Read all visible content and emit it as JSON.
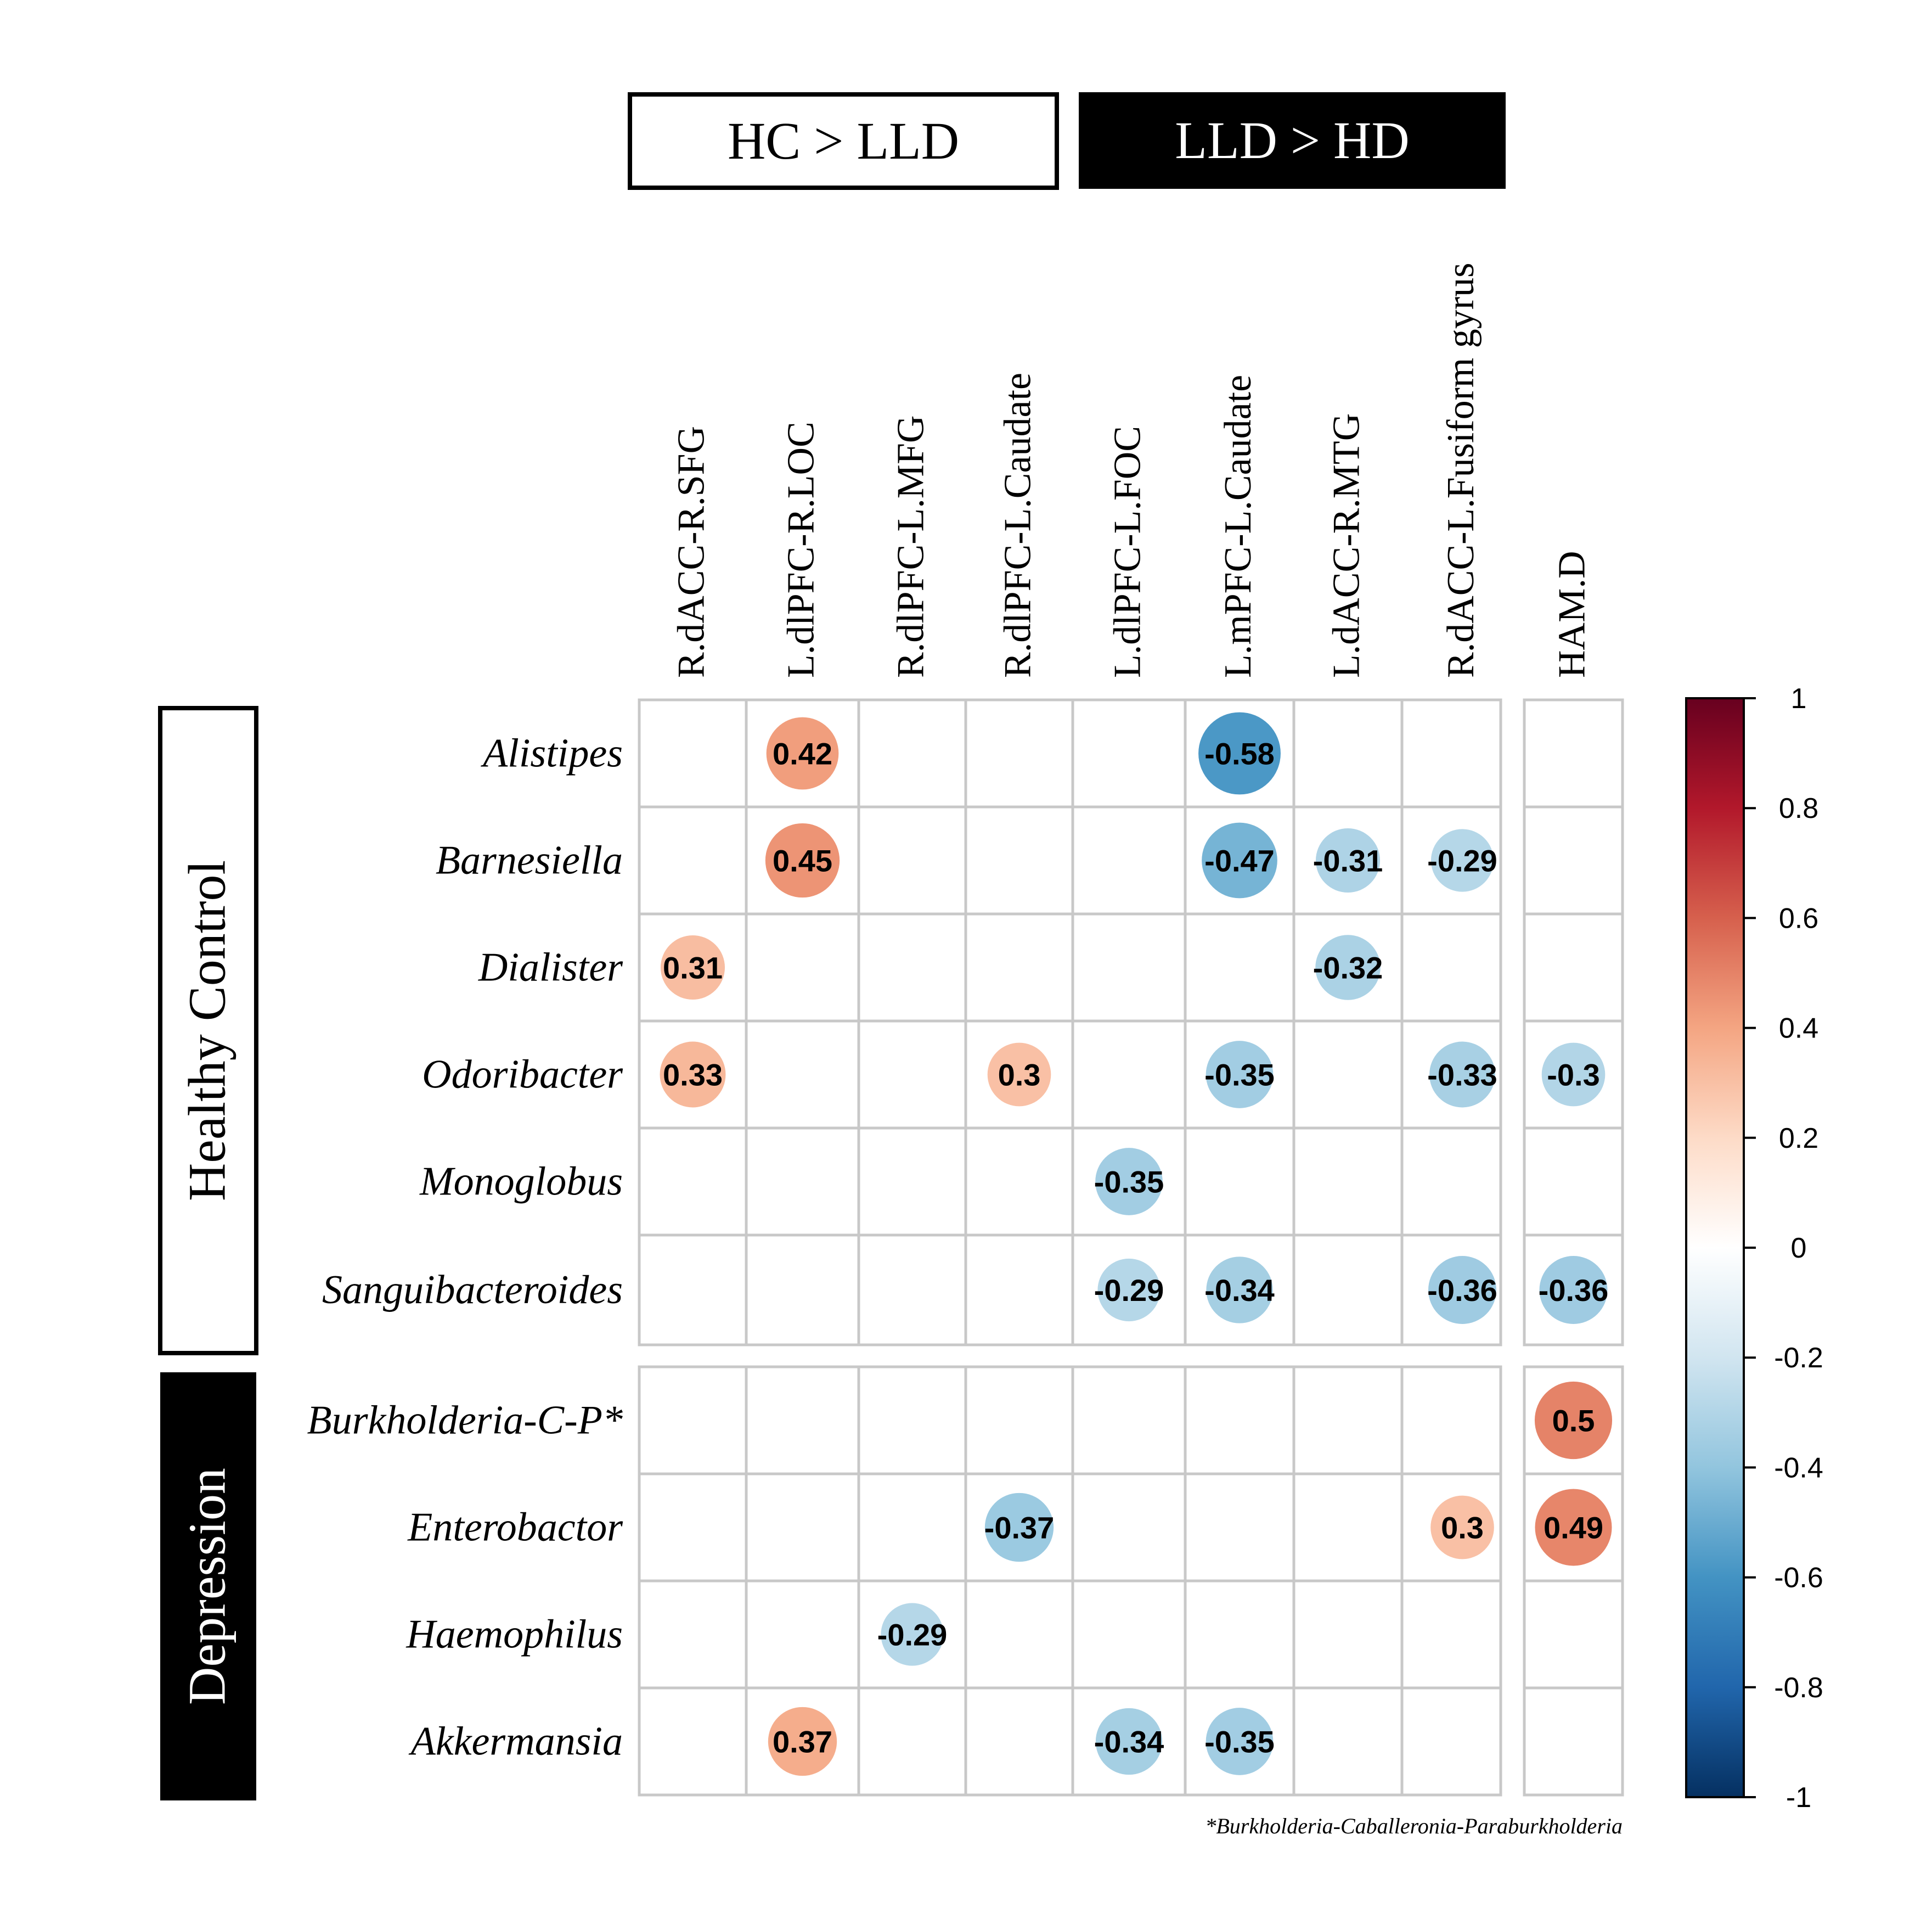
{
  "chart_data": {
    "type": "heatmap",
    "column_groups": [
      {
        "label": "HC > LLD",
        "style": "outlined"
      },
      {
        "label": "LLD > HD",
        "style": "filled"
      }
    ],
    "columns": [
      "R.dACC-R.SFG",
      "L.dlPFC-R.LOC",
      "R.dlPFC-L.MFG",
      "R.dlPFC-L.Caudate",
      "L.dlPFC-L.FOC",
      "L.mPFC-L.Caudate",
      "L.dACC-R.MTG",
      "R.dACC-L.Fusiform gyrus",
      "HAM.D"
    ],
    "row_groups": [
      {
        "label": "Healthy Control",
        "style": "outlined",
        "rows": [
          "Alistipes",
          "Barnesiella",
          "Dialister",
          "Odoribacter",
          "Monoglobus",
          "Sanguibacteroides"
        ]
      },
      {
        "label": "Depression",
        "style": "filled",
        "rows": [
          "Burkholderia-C-P*",
          "Enterobactor",
          "Haemophilus",
          "Akkermansia"
        ]
      }
    ],
    "values": [
      [
        null,
        0.42,
        null,
        null,
        null,
        -0.58,
        null,
        null,
        null
      ],
      [
        null,
        0.45,
        null,
        null,
        null,
        -0.47,
        -0.31,
        -0.29,
        null
      ],
      [
        0.31,
        null,
        null,
        null,
        null,
        null,
        -0.32,
        null,
        null
      ],
      [
        0.33,
        null,
        null,
        0.3,
        null,
        -0.35,
        null,
        -0.33,
        -0.3
      ],
      [
        null,
        null,
        null,
        null,
        -0.35,
        null,
        null,
        null,
        null
      ],
      [
        null,
        null,
        null,
        null,
        -0.29,
        -0.34,
        null,
        -0.36,
        -0.36
      ],
      [
        null,
        null,
        null,
        null,
        null,
        null,
        null,
        null,
        0.5
      ],
      [
        null,
        null,
        null,
        -0.37,
        null,
        null,
        null,
        0.3,
        0.49
      ],
      [
        null,
        null,
        -0.29,
        null,
        null,
        null,
        null,
        null,
        null
      ],
      [
        null,
        0.37,
        null,
        null,
        -0.34,
        -0.35,
        null,
        null,
        null
      ]
    ],
    "colorbar": {
      "range": [
        -1,
        1
      ],
      "ticks": [
        "1",
        "0.8",
        "0.6",
        "0.4",
        "0.2",
        "0",
        "-0.2",
        "-0.4",
        "-0.6",
        "-0.8",
        "-1"
      ],
      "colors": [
        "#67001f",
        "#b2182b",
        "#d6604d",
        "#f4a582",
        "#fddbc7",
        "#ffffff",
        "#d1e5f0",
        "#92c5de",
        "#4393c3",
        "#2166ac",
        "#053061"
      ]
    },
    "footnote": "*Burkholderia-Caballeronia-Paraburkholderia"
  }
}
